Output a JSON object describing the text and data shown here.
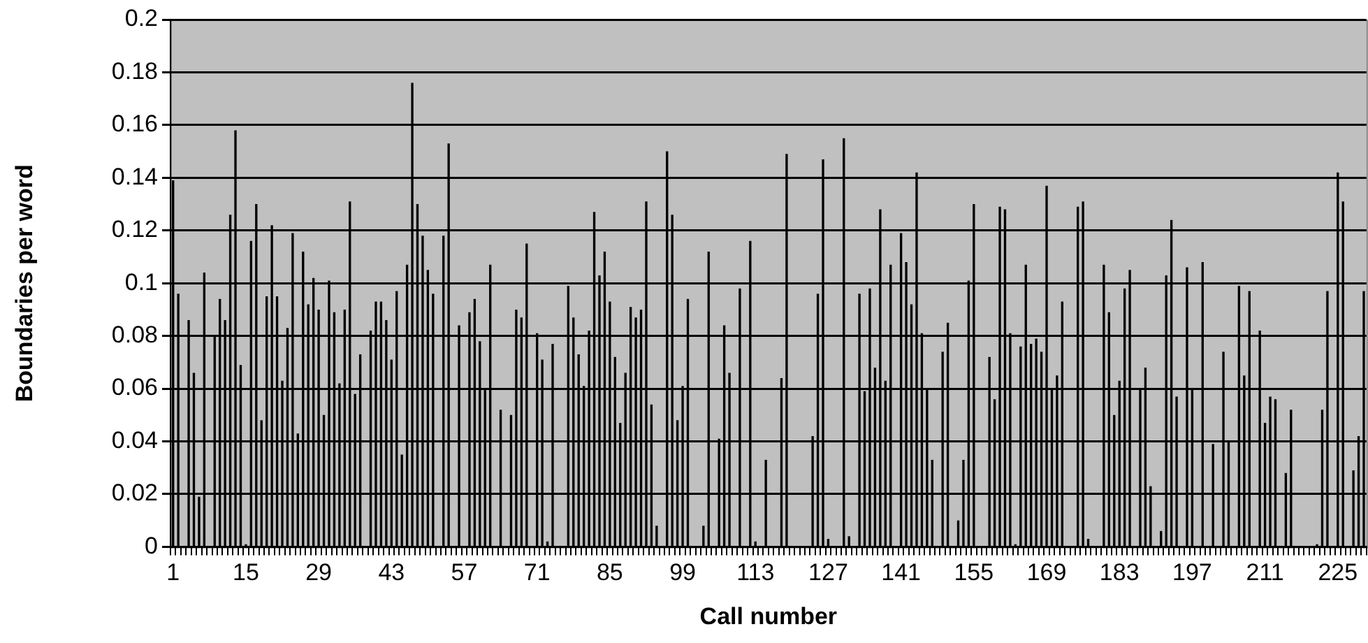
{
  "chart_data": {
    "type": "bar",
    "xlabel": "Call number",
    "ylabel": "Boundaries per word",
    "color": "#000000",
    "grid": "y",
    "ylim": [
      0,
      0.2
    ],
    "yticks": [
      0,
      0.02,
      0.04,
      0.06,
      0.08,
      0.1,
      0.12,
      0.14,
      0.16,
      0.18,
      0.2
    ],
    "categories": [
      "1",
      null,
      null,
      null,
      null,
      null,
      null,
      null,
      null,
      null,
      null,
      null,
      null,
      null,
      "15",
      null,
      null,
      null,
      null,
      null,
      null,
      null,
      null,
      null,
      null,
      null,
      null,
      null,
      "29",
      null,
      null,
      null,
      null,
      null,
      null,
      null,
      null,
      null,
      null,
      null,
      null,
      null,
      "43",
      null,
      null,
      null,
      null,
      null,
      null,
      null,
      null,
      null,
      null,
      null,
      null,
      null,
      "57",
      null,
      null,
      null,
      null,
      null,
      null,
      null,
      null,
      null,
      null,
      null,
      null,
      null,
      "71",
      null,
      null,
      null,
      null,
      null,
      null,
      null,
      null,
      null,
      null,
      null,
      null,
      null,
      "85",
      null,
      null,
      null,
      null,
      null,
      null,
      null,
      null,
      null,
      null,
      null,
      null,
      null,
      "99",
      null,
      null,
      null,
      null,
      null,
      null,
      null,
      null,
      null,
      null,
      null,
      null,
      null,
      "113",
      null,
      null,
      null,
      null,
      null,
      null,
      null,
      null,
      null,
      null,
      null,
      null,
      null,
      "127",
      null,
      null,
      null,
      null,
      null,
      null,
      null,
      null,
      null,
      null,
      null,
      null,
      null,
      "141",
      null,
      null,
      null,
      null,
      null,
      null,
      null,
      null,
      null,
      null,
      null,
      null,
      null,
      "155",
      null,
      null,
      null,
      null,
      null,
      null,
      null,
      null,
      null,
      null,
      null,
      null,
      null,
      "169",
      null,
      null,
      null,
      null,
      null,
      null,
      null,
      null,
      null,
      null,
      null,
      null,
      null,
      "183",
      null,
      null,
      null,
      null,
      null,
      null,
      null,
      null,
      null,
      null,
      null,
      null,
      null,
      "197",
      null,
      null,
      null,
      null,
      null,
      null,
      null,
      null,
      null,
      null,
      null,
      null,
      null,
      "211",
      null,
      null,
      null,
      null,
      null,
      null,
      null,
      null,
      null,
      null,
      null,
      null,
      null,
      "225",
      null,
      null,
      null,
      null,
      null
    ],
    "values": [
      0.139,
      0.096,
      0,
      0.086,
      0.066,
      0.019,
      0.104,
      0,
      0.08,
      0.094,
      0.086,
      0.126,
      0.158,
      0.069,
      0.001,
      0.116,
      0.13,
      0.048,
      0.095,
      0.122,
      0.095,
      0.063,
      0.083,
      0.119,
      0.043,
      0.112,
      0.092,
      0.102,
      0.09,
      0.05,
      0.101,
      0.089,
      0.062,
      0.09,
      0.131,
      0.058,
      0.073,
      0,
      0.082,
      0.093,
      0.093,
      0.086,
      0.071,
      0.097,
      0.035,
      0.107,
      0.176,
      0.13,
      0.118,
      0.105,
      0.096,
      0,
      0.118,
      0.153,
      0,
      0.084,
      0,
      0.089,
      0.094,
      0.078,
      0.06,
      0.107,
      0,
      0.052,
      0,
      0.05,
      0.09,
      0.087,
      0.115,
      0,
      0.081,
      0.071,
      0.002,
      0.077,
      0,
      0,
      0.099,
      0.087,
      0.073,
      0.061,
      0.082,
      0.127,
      0.103,
      0.112,
      0.093,
      0.072,
      0.047,
      0.066,
      0.091,
      0.087,
      0.09,
      0.131,
      0.054,
      0.008,
      0,
      0.15,
      0.126,
      0.048,
      0.061,
      0.094,
      0,
      0,
      0.008,
      0.112,
      0,
      0.041,
      0.084,
      0.066,
      0,
      0.098,
      0,
      0.116,
      0.002,
      0,
      0.033,
      0,
      0,
      0.064,
      0.149,
      0,
      0,
      0,
      0,
      0.042,
      0.096,
      0.147,
      0.003,
      0,
      0,
      0.155,
      0.004,
      0,
      0.096,
      0.059,
      0.098,
      0.068,
      0.128,
      0.063,
      0.107,
      0,
      0.119,
      0.108,
      0.092,
      0.142,
      0.081,
      0.06,
      0.033,
      0,
      0.074,
      0.085,
      0,
      0.01,
      0.033,
      0.101,
      0.13,
      0,
      0,
      0.072,
      0.056,
      0.129,
      0.128,
      0.081,
      0.001,
      0.076,
      0.107,
      0.077,
      0.079,
      0.074,
      0.137,
      0.06,
      0.065,
      0.093,
      0,
      0,
      0.129,
      0.131,
      0.003,
      0,
      0,
      0.107,
      0.089,
      0.05,
      0.063,
      0.098,
      0.105,
      0,
      0.06,
      0.068,
      0.023,
      0,
      0.006,
      0.103,
      0.124,
      0.057,
      0,
      0.106,
      0.06,
      0,
      0.108,
      0,
      0.039,
      0,
      0.074,
      0.04,
      0,
      0.099,
      0.065,
      0.097,
      0,
      0.082,
      0.047,
      0.057,
      0.056,
      0,
      0.028,
      0.052,
      0,
      0,
      0,
      0,
      0.001,
      0.052,
      0.097,
      0,
      0.142,
      0.131,
      0,
      0.029,
      0.042,
      0.097
    ]
  }
}
